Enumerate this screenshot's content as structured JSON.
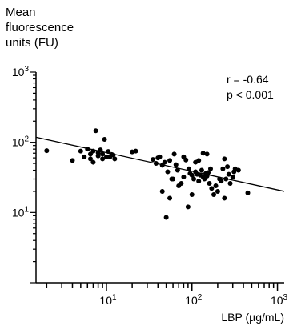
{
  "chart_data": {
    "type": "scatter",
    "ylabel_lines": [
      "Mean",
      "fluorescence",
      "units (FU)"
    ],
    "xlabel": "LBP (µg/mL)",
    "x_scale": "log",
    "y_scale": "log",
    "xlim": [
      1.5,
      1200
    ],
    "ylim": [
      1,
      1000
    ],
    "x_ticks": [
      {
        "value": 10,
        "base": "10",
        "exp": "1"
      },
      {
        "value": 100,
        "base": "10",
        "exp": "2"
      },
      {
        "value": 1000,
        "base": "10",
        "exp": "3"
      }
    ],
    "y_ticks": [
      {
        "value": 10,
        "base": "10",
        "exp": "1"
      },
      {
        "value": 100,
        "base": "10",
        "exp": "2"
      },
      {
        "value": 1000,
        "base": "10",
        "exp": "3"
      }
    ],
    "grid": false,
    "annotations": [
      "r = -0.64",
      "p < 0.001"
    ],
    "regression_line": {
      "x": [
        1.5,
        1200
      ],
      "y": [
        118,
        20
      ]
    },
    "points": [
      [
        2,
        76
      ],
      [
        4,
        55
      ],
      [
        5,
        75
      ],
      [
        5.5,
        62
      ],
      [
        6,
        80
      ],
      [
        6.5,
        58
      ],
      [
        6.5,
        68
      ],
      [
        7,
        52
      ],
      [
        7,
        75
      ],
      [
        7.5,
        146
      ],
      [
        8,
        64
      ],
      [
        8,
        71
      ],
      [
        8.5,
        78
      ],
      [
        9,
        58
      ],
      [
        9,
        68
      ],
      [
        9.5,
        110
      ],
      [
        10,
        62
      ],
      [
        10.5,
        74
      ],
      [
        11,
        62
      ],
      [
        11.5,
        67
      ],
      [
        12,
        66
      ],
      [
        12.5,
        58
      ],
      [
        20,
        73
      ],
      [
        22,
        75
      ],
      [
        35,
        57
      ],
      [
        38,
        50
      ],
      [
        40,
        60
      ],
      [
        42,
        62
      ],
      [
        45,
        47
      ],
      [
        45,
        20
      ],
      [
        48,
        52
      ],
      [
        50,
        8.5
      ],
      [
        52,
        38
      ],
      [
        55,
        55
      ],
      [
        55,
        16
      ],
      [
        58,
        30
      ],
      [
        60,
        30
      ],
      [
        62,
        68
      ],
      [
        65,
        48
      ],
      [
        68,
        40
      ],
      [
        70,
        24
      ],
      [
        75,
        26
      ],
      [
        80,
        32
      ],
      [
        80,
        62
      ],
      [
        85,
        56
      ],
      [
        90,
        12
      ],
      [
        92,
        42
      ],
      [
        95,
        36
      ],
      [
        100,
        34
      ],
      [
        100,
        18
      ],
      [
        105,
        30
      ],
      [
        110,
        52
      ],
      [
        110,
        38
      ],
      [
        115,
        35
      ],
      [
        120,
        28
      ],
      [
        120,
        55
      ],
      [
        125,
        34
      ],
      [
        130,
        40
      ],
      [
        135,
        32
      ],
      [
        135,
        70
      ],
      [
        140,
        30
      ],
      [
        145,
        36
      ],
      [
        150,
        33
      ],
      [
        150,
        68
      ],
      [
        155,
        37
      ],
      [
        160,
        26
      ],
      [
        165,
        42
      ],
      [
        170,
        22
      ],
      [
        180,
        18
      ],
      [
        190,
        24
      ],
      [
        200,
        20
      ],
      [
        210,
        30
      ],
      [
        220,
        28
      ],
      [
        230,
        42
      ],
      [
        240,
        16
      ],
      [
        250,
        30
      ],
      [
        260,
        45
      ],
      [
        270,
        35
      ],
      [
        280,
        26
      ],
      [
        300,
        32
      ],
      [
        310,
        38
      ],
      [
        320,
        42
      ],
      [
        350,
        40
      ],
      [
        450,
        19
      ],
      [
        240,
        58
      ]
    ]
  }
}
